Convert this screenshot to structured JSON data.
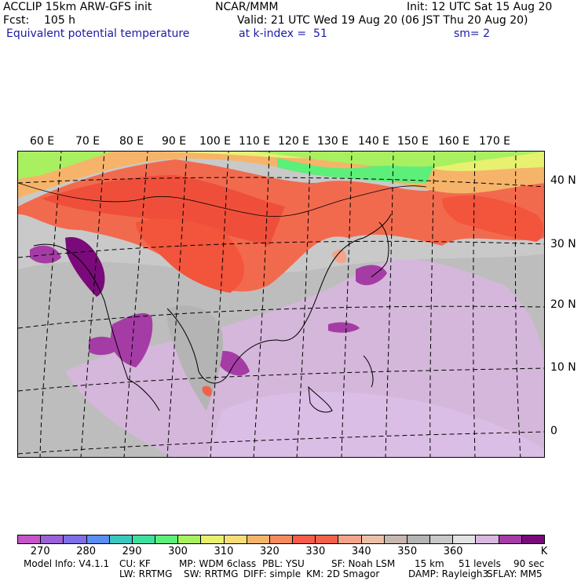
{
  "header": {
    "model_title": "ACCLIP 15km ARW-GFS init",
    "center": "NCAR/MMM",
    "init": "Init: 12 UTC Sat 15 Aug 20",
    "fcst_label": "Fcst:",
    "fcst_value": "105 h",
    "valid": "Valid: 21 UTC Wed 19 Aug 20 (06 JST Thu 20 Aug 20)",
    "field_name": "Equivalent potential temperature",
    "level": "at k-index =  51",
    "smoothing": "sm= 2"
  },
  "map": {
    "longitude_labels": [
      "60 E",
      "70 E",
      "80 E",
      "90 E",
      "100 E",
      "110 E",
      "120 E",
      "130 E",
      "140 E",
      "150 E",
      "160 E",
      "170 E"
    ],
    "latitude_labels": [
      "40 N",
      "30 N",
      "20 N",
      "10 N",
      "0"
    ]
  },
  "colorbar": {
    "colors": [
      "#c455c8",
      "#9a62d6",
      "#7f6ee6",
      "#5b8ef0",
      "#38c8c0",
      "#3ee0a0",
      "#5cef7a",
      "#a8f060",
      "#e8f070",
      "#f6dd7a",
      "#f6b46a",
      "#f58a5e",
      "#f55c4a",
      "#f2624a",
      "#f4a48a",
      "#ecc0a8",
      "#c8b7ae",
      "#b4b4b4",
      "#c8c8c8",
      "#e2e2e2",
      "#d8b8e0",
      "#a53ca5",
      "#7a0a7a"
    ],
    "tick_labels": [
      "270",
      "280",
      "290",
      "300",
      "310",
      "320",
      "330",
      "340",
      "350",
      "360"
    ],
    "unit": "K"
  },
  "footer": {
    "line1": [
      "Model Info: V4.1.1",
      "CU: KF",
      "MP: WDM 6class",
      "PBL: YSU",
      "SF: Noah LSM",
      "15 km",
      "51 levels",
      "90 sec"
    ],
    "line2": [
      "LW: RRTMG",
      "SW: RRTMG",
      "DIFF: simple",
      "KM: 2D Smagor",
      "DAMP: Rayleigh3",
      "SFLAY: MM5"
    ]
  }
}
